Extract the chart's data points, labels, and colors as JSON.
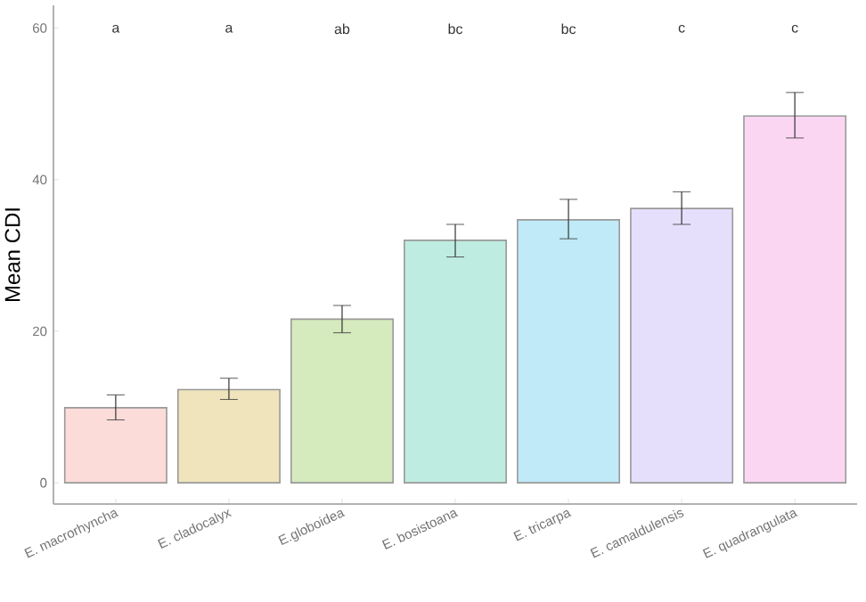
{
  "chart_data": {
    "type": "bar",
    "ylabel": "Mean CDI",
    "categories": [
      "E. macrorhyncha",
      "E. cladocalyx",
      "E.globoidea",
      "E. bosistoana",
      "E. tricarpa",
      "E. camaldulensis",
      "E. quadrangulata"
    ],
    "values": [
      9.9,
      12.3,
      21.6,
      32.0,
      34.7,
      36.2,
      48.4
    ],
    "errors": [
      [
        8.3,
        11.6
      ],
      [
        11.0,
        13.8
      ],
      [
        19.8,
        23.4
      ],
      [
        29.8,
        34.1
      ],
      [
        32.2,
        37.4
      ],
      [
        34.1,
        38.4
      ],
      [
        45.5,
        51.5
      ]
    ],
    "colors": [
      "#fcdcd8",
      "#efe4bc",
      "#d5eabd",
      "#bfece1",
      "#c0eaf7",
      "#e6dffc",
      "#fbd6f2"
    ],
    "ylim": [
      -2.8,
      63
    ],
    "yticks": [
      0,
      20,
      40,
      60
    ],
    "grid": false,
    "annotations": [
      "a",
      "a",
      "ab",
      "bc",
      "bc",
      "c",
      "c"
    ]
  }
}
